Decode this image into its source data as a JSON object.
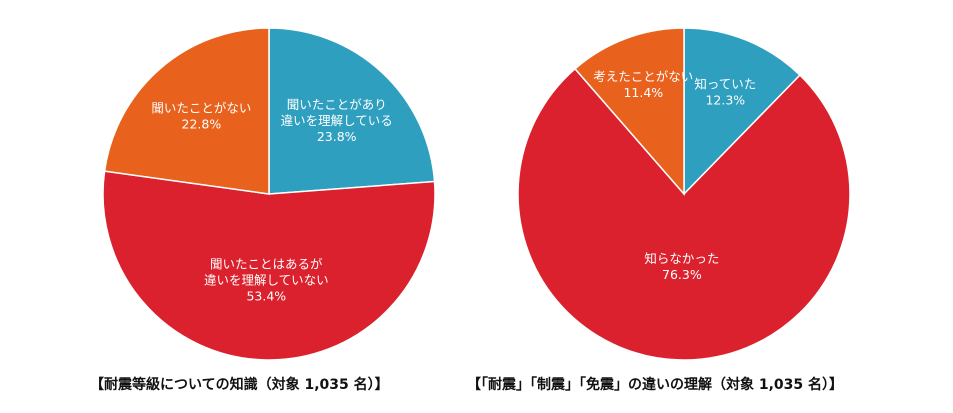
{
  "chart_data": [
    {
      "type": "pie",
      "title": "【耐震等級についての知識（対象 1,035 名）】",
      "colors": [
        "#2E9FBF",
        "#DA212D",
        "#E8621D"
      ],
      "slices": [
        {
          "label": "聞いたことがあり\n違いを理解している",
          "value": 23.8,
          "value_label": "23.8%",
          "color": "#2E9FBF"
        },
        {
          "label": "聞いたことはあるが\n違いを理解していない",
          "value": 53.4,
          "value_label": "53.4%",
          "color": "#DA212D"
        },
        {
          "label": "聞いたことがない",
          "value": 22.8,
          "value_label": "22.8%",
          "color": "#E8621D"
        }
      ]
    },
    {
      "type": "pie",
      "title": "【「耐震」「制震」「免震」の違いの理解（対象 1,035 名）】",
      "colors": [
        "#2E9FBF",
        "#DA212D",
        "#E8621D"
      ],
      "slices": [
        {
          "label": "知っていた",
          "value": 12.3,
          "value_label": "12.3%",
          "color": "#2E9FBF"
        },
        {
          "label": "知らなかった",
          "value": 76.3,
          "value_label": "76.3%",
          "color": "#DA212D"
        },
        {
          "label": "考えたことがない",
          "value": 11.4,
          "value_label": "11.4%",
          "color": "#E8621D"
        }
      ]
    }
  ]
}
